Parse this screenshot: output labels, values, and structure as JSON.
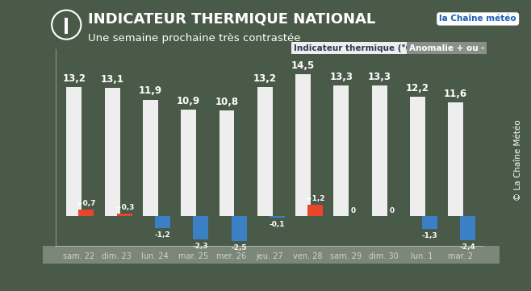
{
  "chart_data": {
    "type": "bar",
    "title": "INDICATEUR THERMIQUE NATIONAL",
    "subtitle": "Une semaine prochaine très contrastée",
    "logo": "la Chaîne météo",
    "source": "© La Chaîne Météo",
    "categories": [
      "sam. 22",
      "dim. 23",
      "lun. 24",
      "mar. 25",
      "mer. 26",
      "jeu. 27",
      "ven. 28",
      "sam. 29",
      "dim. 30",
      "lun. 1",
      "mar. 2"
    ],
    "ylim": [
      -3,
      17
    ],
    "yticks": [],
    "tick_labels": "x",
    "data_labels": true,
    "series": [
      {
        "name": "Indicateur thermique (°C)",
        "color": "#eeeeee",
        "values": [
          13.2,
          13.1,
          11.9,
          10.9,
          10.8,
          13.2,
          14.5,
          13.3,
          13.3,
          12.2,
          11.6
        ],
        "value_labels": [
          "13,2",
          "13,1",
          "11,9",
          "10,9",
          "10,8",
          "13,2",
          "14,5",
          "13,3",
          "13,3",
          "12,2",
          "11,6"
        ]
      },
      {
        "name": "Anomalie + ou -",
        "colors": [
          "#e8452c",
          "#e8452c",
          "#3b7fc4",
          "#3b7fc4",
          "#3b7fc4",
          "#3b7fc4",
          "#e8452c",
          "#3b7fc4",
          "#3b7fc4",
          "#3b7fc4",
          "#3b7fc4"
        ],
        "values": [
          0.7,
          0.3,
          -1.2,
          -2.3,
          -2.5,
          -0.1,
          1.2,
          0,
          0,
          -1.3,
          -2.4
        ],
        "value_labels": [
          "+0,7",
          "+0,3",
          "-1,2",
          "-2,3",
          "-2,5",
          "-0,1",
          "+1,2",
          "0",
          "0",
          "-1,3",
          "-2,4"
        ]
      }
    ]
  }
}
